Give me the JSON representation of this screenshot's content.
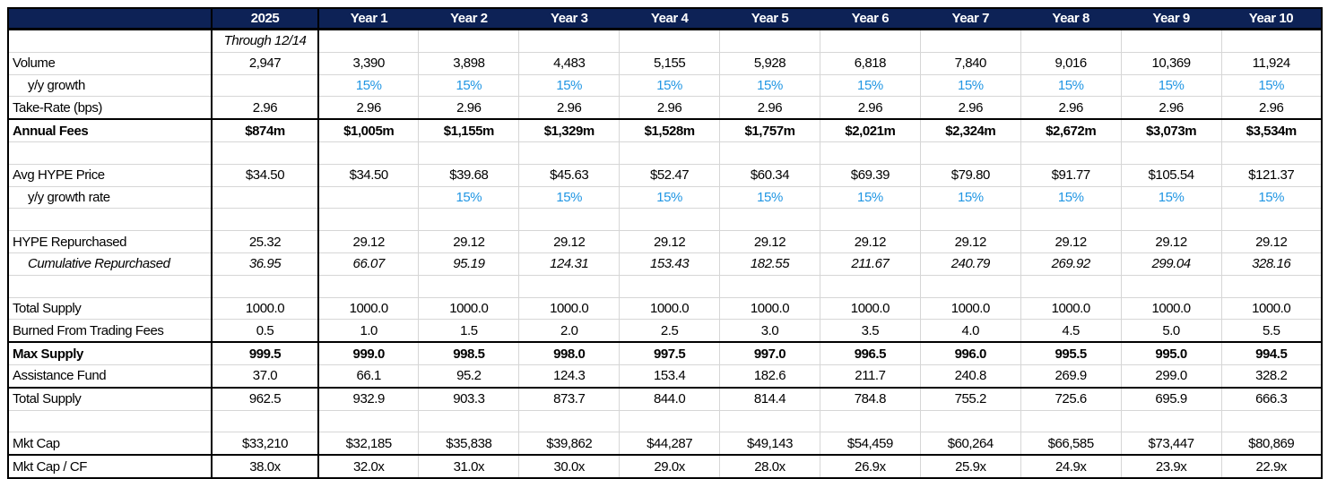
{
  "colors": {
    "header_background": "#0d2256",
    "header_text": "#ffffff",
    "growth_rate_text": "#2196e3",
    "gridline": "#d6d6d6",
    "section_border": "#000000"
  },
  "table": {
    "columns": [
      "",
      "2025",
      "Year 1",
      "Year 2",
      "Year 3",
      "Year 4",
      "Year 5",
      "Year 6",
      "Year 7",
      "Year 8",
      "Year 9",
      "Year 10"
    ],
    "rows": [
      {
        "name": "period-note-row",
        "style": "italic",
        "label": "",
        "values": [
          "Through 12/14",
          "",
          "",
          "",
          "",
          "",
          "",
          "",
          "",
          "",
          ""
        ]
      },
      {
        "name": "volume-row",
        "style": "",
        "label": "Volume",
        "values": [
          "2,947",
          "3,390",
          "3,898",
          "4,483",
          "5,155",
          "5,928",
          "6,818",
          "7,840",
          "9,016",
          "10,369",
          "11,924"
        ]
      },
      {
        "name": "volume-growth-row",
        "style": "indent blue",
        "label": "y/y growth",
        "values": [
          "",
          "15%",
          "15%",
          "15%",
          "15%",
          "15%",
          "15%",
          "15%",
          "15%",
          "15%",
          "15%"
        ]
      },
      {
        "name": "take-rate-row",
        "style": "",
        "label": "Take-Rate (bps)",
        "values": [
          "2.96",
          "2.96",
          "2.96",
          "2.96",
          "2.96",
          "2.96",
          "2.96",
          "2.96",
          "2.96",
          "2.96",
          "2.96"
        ]
      },
      {
        "name": "annual-fees-row",
        "style": "bold thick-top",
        "label": "Annual Fees",
        "values": [
          "$874m",
          "$1,005m",
          "$1,155m",
          "$1,329m",
          "$1,528m",
          "$1,757m",
          "$2,021m",
          "$2,324m",
          "$2,672m",
          "$3,073m",
          "$3,534m"
        ]
      },
      {
        "name": "spacer-row-1",
        "style": "",
        "label": "",
        "values": [
          "",
          "",
          "",
          "",
          "",
          "",
          "",
          "",
          "",
          "",
          ""
        ]
      },
      {
        "name": "avg-hype-price-row",
        "style": "",
        "label": "Avg HYPE Price",
        "values": [
          "$34.50",
          "$34.50",
          "$39.68",
          "$45.63",
          "$52.47",
          "$60.34",
          "$69.39",
          "$79.80",
          "$91.77",
          "$105.54",
          "$121.37"
        ]
      },
      {
        "name": "price-growth-row",
        "style": "indent blue",
        "label": "y/y growth rate",
        "values": [
          "",
          "",
          "15%",
          "15%",
          "15%",
          "15%",
          "15%",
          "15%",
          "15%",
          "15%",
          "15%"
        ]
      },
      {
        "name": "spacer-row-2",
        "style": "",
        "label": "",
        "values": [
          "",
          "",
          "",
          "",
          "",
          "",
          "",
          "",
          "",
          "",
          ""
        ]
      },
      {
        "name": "hype-repurchased-row",
        "style": "",
        "label": "HYPE Repurchased",
        "values": [
          "25.32",
          "29.12",
          "29.12",
          "29.12",
          "29.12",
          "29.12",
          "29.12",
          "29.12",
          "29.12",
          "29.12",
          "29.12"
        ]
      },
      {
        "name": "cumulative-repurchased-row",
        "style": "indent italic",
        "label": "Cumulative Repurchased",
        "values": [
          "36.95",
          "66.07",
          "95.19",
          "124.31",
          "153.43",
          "182.55",
          "211.67",
          "240.79",
          "269.92",
          "299.04",
          "328.16"
        ]
      },
      {
        "name": "spacer-row-3",
        "style": "",
        "label": "",
        "values": [
          "",
          "",
          "",
          "",
          "",
          "",
          "",
          "",
          "",
          "",
          ""
        ]
      },
      {
        "name": "total-supply-row",
        "style": "",
        "label": "Total Supply",
        "values": [
          "1000.0",
          "1000.0",
          "1000.0",
          "1000.0",
          "1000.0",
          "1000.0",
          "1000.0",
          "1000.0",
          "1000.0",
          "1000.0",
          "1000.0"
        ]
      },
      {
        "name": "burned-fees-row",
        "style": "",
        "label": "Burned From Trading Fees",
        "values": [
          "0.5",
          "1.0",
          "1.5",
          "2.0",
          "2.5",
          "3.0",
          "3.5",
          "4.0",
          "4.5",
          "5.0",
          "5.5"
        ]
      },
      {
        "name": "max-supply-row",
        "style": "bold thick-top",
        "label": "Max Supply",
        "values": [
          "999.5",
          "999.0",
          "998.5",
          "998.0",
          "997.5",
          "997.0",
          "996.5",
          "996.0",
          "995.5",
          "995.0",
          "994.5"
        ]
      },
      {
        "name": "assistance-fund-row",
        "style": "",
        "label": "Assistance Fund",
        "values": [
          "37.0",
          "66.1",
          "95.2",
          "124.3",
          "153.4",
          "182.6",
          "211.7",
          "240.8",
          "269.9",
          "299.0",
          "328.2"
        ]
      },
      {
        "name": "net-total-supply-row",
        "style": "thick-top",
        "label": "Total Supply",
        "values": [
          "962.5",
          "932.9",
          "903.3",
          "873.7",
          "844.0",
          "814.4",
          "784.8",
          "755.2",
          "725.6",
          "695.9",
          "666.3"
        ]
      },
      {
        "name": "spacer-row-4",
        "style": "",
        "label": "",
        "values": [
          "",
          "",
          "",
          "",
          "",
          "",
          "",
          "",
          "",
          "",
          ""
        ]
      },
      {
        "name": "mkt-cap-row",
        "style": "",
        "label": "Mkt Cap",
        "values": [
          "$33,210",
          "$32,185",
          "$35,838",
          "$39,862",
          "$44,287",
          "$49,143",
          "$54,459",
          "$60,264",
          "$66,585",
          "$73,447",
          "$80,869"
        ]
      },
      {
        "name": "mkt-cap-cf-row",
        "style": "thick-top",
        "label": "Mkt Cap / CF",
        "values": [
          "38.0x",
          "32.0x",
          "31.0x",
          "30.0x",
          "29.0x",
          "28.0x",
          "26.9x",
          "25.9x",
          "24.9x",
          "23.9x",
          "22.9x"
        ]
      }
    ]
  }
}
